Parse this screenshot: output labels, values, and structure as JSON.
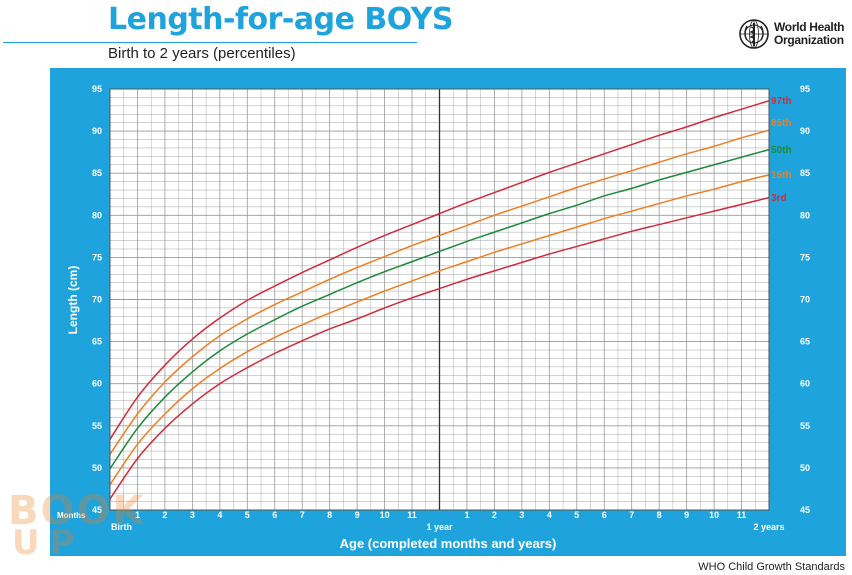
{
  "header": {
    "title": "Length-for-age BOYS",
    "subtitle": "Birth to 2 years (percentiles)"
  },
  "organization": {
    "line1": "World Health",
    "line2": "Organization"
  },
  "footer": "WHO Child Growth Standards",
  "watermark": {
    "line1": "BOOK",
    "line2": "UP"
  },
  "colors": {
    "panel": "#1fa3dc",
    "grid": "#9a9a9a",
    "p97": "#d12a3c",
    "p85": "#ef7d22",
    "p50": "#1d8a3a",
    "p15": "#ef7d22",
    "p3": "#d12a3c"
  },
  "chart_data": {
    "type": "line",
    "title": "Length-for-age BOYS",
    "subtitle": "Birth to 2 years (percentiles)",
    "xlabel": "Age (completed months and years)",
    "ylabel": "Length (cm)",
    "xlim": [
      0,
      24
    ],
    "ylim": [
      45,
      95
    ],
    "y_ticks": [
      45,
      50,
      55,
      60,
      65,
      70,
      75,
      80,
      85,
      90,
      95
    ],
    "x_tick_labels": [
      "Months",
      "Birth",
      "1",
      "2",
      "3",
      "4",
      "5",
      "6",
      "7",
      "8",
      "9",
      "10",
      "11",
      "1 year",
      "1",
      "2",
      "3",
      "4",
      "5",
      "6",
      "7",
      "8",
      "9",
      "10",
      "11",
      "2 years"
    ],
    "grid": true,
    "x": [
      0,
      1,
      2,
      3,
      4,
      5,
      6,
      7,
      8,
      9,
      10,
      11,
      12,
      13,
      14,
      15,
      16,
      17,
      18,
      19,
      20,
      21,
      22,
      23,
      24
    ],
    "series": [
      {
        "name": "97th",
        "values": [
          53.4,
          58.4,
          62.2,
          65.3,
          67.8,
          69.9,
          71.6,
          73.2,
          74.7,
          76.2,
          77.6,
          78.9,
          80.2,
          81.5,
          82.7,
          83.9,
          85.1,
          86.2,
          87.3,
          88.4,
          89.5,
          90.5,
          91.6,
          92.6,
          93.6
        ]
      },
      {
        "name": "85th",
        "values": [
          51.6,
          56.4,
          60.2,
          63.2,
          65.7,
          67.7,
          69.4,
          70.9,
          72.4,
          73.8,
          75.1,
          76.4,
          77.6,
          78.8,
          80.0,
          81.1,
          82.2,
          83.3,
          84.3,
          85.3,
          86.3,
          87.3,
          88.2,
          89.2,
          90.1
        ]
      },
      {
        "name": "50th",
        "values": [
          49.9,
          54.7,
          58.4,
          61.4,
          63.9,
          65.9,
          67.6,
          69.2,
          70.6,
          72.0,
          73.3,
          74.5,
          75.7,
          76.9,
          78.0,
          79.1,
          80.2,
          81.2,
          82.3,
          83.2,
          84.2,
          85.1,
          86.0,
          86.9,
          87.8
        ]
      },
      {
        "name": "15th",
        "values": [
          48.0,
          52.8,
          56.4,
          59.4,
          61.8,
          63.8,
          65.5,
          67.0,
          68.4,
          69.7,
          71.0,
          72.2,
          73.4,
          74.5,
          75.6,
          76.6,
          77.6,
          78.6,
          79.6,
          80.5,
          81.4,
          82.3,
          83.1,
          84.0,
          84.8
        ]
      },
      {
        "name": "3rd",
        "values": [
          46.3,
          51.1,
          54.7,
          57.6,
          60.0,
          61.9,
          63.6,
          65.1,
          66.5,
          67.7,
          69.0,
          70.2,
          71.3,
          72.4,
          73.4,
          74.4,
          75.4,
          76.3,
          77.2,
          78.1,
          78.9,
          79.7,
          80.5,
          81.3,
          82.1
        ]
      }
    ]
  }
}
